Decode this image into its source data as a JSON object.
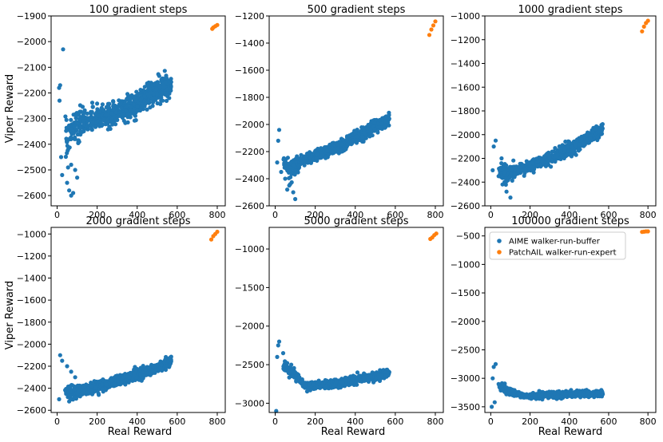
{
  "figure": {
    "xlabel": "Real Reward",
    "ylabel": "Viper Reward"
  },
  "colors": {
    "aime": "#1f77b4",
    "patchail": "#ff7f0e"
  },
  "chart_data": [
    {
      "type": "scatter",
      "title": "100 gradient steps",
      "xlim": [
        -30,
        840
      ],
      "ylim": [
        -2640,
        -1900
      ],
      "xticks": [
        0,
        200,
        400,
        600,
        800
      ],
      "yticks": [
        -2600,
        -2500,
        -2400,
        -2300,
        -2200,
        -2100,
        -2000,
        -1900
      ],
      "series": [
        {
          "name": "AIME walker-run-buffer",
          "description": "cloud",
          "trend": [
            [
              20,
              -2420
            ],
            [
              60,
              -2360
            ],
            [
              100,
              -2330
            ],
            [
              200,
              -2300
            ],
            [
              300,
              -2280
            ],
            [
              400,
              -2240
            ],
            [
              470,
              -2200
            ],
            [
              560,
              -2170
            ]
          ],
          "spread": 40,
          "outliers": [
            [
              10,
              -2180
            ],
            [
              15,
              -2170
            ],
            [
              30,
              -2030
            ],
            [
              12,
              -2230
            ],
            [
              20,
              -2450
            ],
            [
              25,
              -2520
            ],
            [
              50,
              -2550
            ],
            [
              60,
              -2580
            ],
            [
              70,
              -2600
            ],
            [
              80,
              -2590
            ],
            [
              90,
              -2500
            ],
            [
              70,
              -2480
            ],
            [
              100,
              -2530
            ],
            [
              55,
              -2420
            ]
          ]
        },
        {
          "name": "PatchAIL walker-run-expert",
          "points": [
            [
              775,
              -1950
            ],
            [
              780,
              -1945
            ],
            [
              790,
              -1940
            ],
            [
              800,
              -1935
            ]
          ]
        }
      ]
    },
    {
      "type": "scatter",
      "title": "500 gradient steps",
      "xlim": [
        -30,
        840
      ],
      "ylim": [
        -2600,
        -1200
      ],
      "xticks": [
        0,
        200,
        400,
        600,
        800
      ],
      "yticks": [
        -2600,
        -2400,
        -2200,
        -2000,
        -1800,
        -1600,
        -1400,
        -1200
      ],
      "series": [
        {
          "name": "AIME walker-run-buffer",
          "description": "cloud",
          "trend": [
            [
              20,
              -2250
            ],
            [
              80,
              -2330
            ],
            [
              140,
              -2260
            ],
            [
              200,
              -2230
            ],
            [
              300,
              -2180
            ],
            [
              400,
              -2100
            ],
            [
              500,
              -2010
            ],
            [
              570,
              -1960
            ]
          ],
          "spread": 40,
          "outliers": [
            [
              15,
              -2120
            ],
            [
              20,
              -2040
            ],
            [
              10,
              -2280
            ],
            [
              30,
              -2350
            ],
            [
              50,
              -2400
            ],
            [
              70,
              -2450
            ],
            [
              90,
              -2500
            ],
            [
              100,
              -2550
            ],
            [
              60,
              -2480
            ]
          ]
        },
        {
          "name": "PatchAIL walker-run-expert",
          "points": [
            [
              770,
              -1340
            ],
            [
              780,
              -1300
            ],
            [
              790,
              -1270
            ],
            [
              800,
              -1240
            ]
          ]
        }
      ]
    },
    {
      "type": "scatter",
      "title": "1000 gradient steps",
      "xlim": [
        -30,
        840
      ],
      "ylim": [
        -2600,
        -1000
      ],
      "xticks": [
        0,
        200,
        400,
        600,
        800
      ],
      "yticks": [
        -2600,
        -2400,
        -2200,
        -2000,
        -1800,
        -1600,
        -1400,
        -1200,
        -1000
      ],
      "series": [
        {
          "name": "AIME walker-run-buffer",
          "description": "cloud",
          "trend": [
            [
              20,
              -2250
            ],
            [
              80,
              -2330
            ],
            [
              150,
              -2290
            ],
            [
              200,
              -2270
            ],
            [
              300,
              -2200
            ],
            [
              400,
              -2120
            ],
            [
              500,
              -2030
            ],
            [
              570,
              -1960
            ]
          ],
          "spread": 45,
          "outliers": [
            [
              15,
              -2100
            ],
            [
              25,
              -2050
            ],
            [
              10,
              -2300
            ],
            [
              40,
              -2350
            ],
            [
              60,
              -2420
            ],
            [
              80,
              -2480
            ],
            [
              100,
              -2530
            ],
            [
              70,
              -2400
            ],
            [
              55,
              -2200
            ]
          ]
        },
        {
          "name": "PatchAIL walker-run-expert",
          "points": [
            [
              770,
              -1130
            ],
            [
              780,
              -1090
            ],
            [
              790,
              -1060
            ],
            [
              800,
              -1040
            ]
          ]
        }
      ]
    },
    {
      "type": "scatter",
      "title": "2000 gradient steps",
      "xlim": [
        -30,
        840
      ],
      "ylim": [
        -2620,
        -940
      ],
      "xticks": [
        0,
        200,
        400,
        600,
        800
      ],
      "yticks": [
        -2600,
        -2400,
        -2200,
        -2000,
        -1800,
        -1600,
        -1400,
        -1200,
        -1000
      ],
      "series": [
        {
          "name": "AIME walker-run-buffer",
          "description": "cloud",
          "trend": [
            [
              20,
              -2380
            ],
            [
              80,
              -2440
            ],
            [
              150,
              -2410
            ],
            [
              200,
              -2390
            ],
            [
              300,
              -2330
            ],
            [
              400,
              -2280
            ],
            [
              500,
              -2210
            ],
            [
              560,
              -2160
            ]
          ],
          "spread": 40,
          "outliers": [
            [
              15,
              -2100
            ],
            [
              25,
              -2150
            ],
            [
              10,
              -2500
            ],
            [
              50,
              -2200
            ],
            [
              70,
              -2250
            ],
            [
              90,
              -2300
            ],
            [
              100,
              -2450
            ],
            [
              60,
              -2520
            ]
          ]
        },
        {
          "name": "PatchAIL walker-run-expert",
          "points": [
            [
              770,
              -1050
            ],
            [
              780,
              -1020
            ],
            [
              790,
              -1000
            ],
            [
              800,
              -980
            ]
          ]
        }
      ]
    },
    {
      "type": "scatter",
      "title": "5000 gradient steps",
      "xlim": [
        -30,
        840
      ],
      "ylim": [
        -3120,
        -720
      ],
      "xticks": [
        0,
        200,
        400,
        600,
        800
      ],
      "yticks": [
        -3000,
        -2500,
        -2000,
        -1500,
        -1000
      ],
      "series": [
        {
          "name": "AIME walker-run-buffer",
          "description": "cloud",
          "trend": [
            [
              20,
              -2450
            ],
            [
              80,
              -2600
            ],
            [
              150,
              -2770
            ],
            [
              200,
              -2770
            ],
            [
              300,
              -2750
            ],
            [
              400,
              -2700
            ],
            [
              500,
              -2650
            ],
            [
              570,
              -2600
            ]
          ],
          "spread": 45,
          "outliers": [
            [
              15,
              -2250
            ],
            [
              20,
              -2200
            ],
            [
              10,
              -2400
            ],
            [
              40,
              -2350
            ],
            [
              60,
              -2480
            ],
            [
              80,
              -2500
            ],
            [
              100,
              -2600
            ],
            [
              5,
              -3100
            ]
          ]
        },
        {
          "name": "PatchAIL walker-run-expert",
          "points": [
            [
              775,
              -870
            ],
            [
              785,
              -850
            ],
            [
              795,
              -820
            ],
            [
              805,
              -800
            ]
          ]
        }
      ]
    },
    {
      "type": "scatter",
      "title": "100000 gradient steps",
      "xlim": [
        -30,
        840
      ],
      "ylim": [
        -3600,
        -350
      ],
      "xticks": [
        0,
        200,
        400,
        600,
        800
      ],
      "yticks": [
        -3500,
        -3000,
        -2500,
        -2000,
        -1500,
        -1000,
        -500
      ],
      "series": [
        {
          "name": "AIME walker-run-buffer",
          "description": "cloud",
          "trend": [
            [
              20,
              -3100
            ],
            [
              80,
              -3200
            ],
            [
              150,
              -3300
            ],
            [
              200,
              -3310
            ],
            [
              300,
              -3300
            ],
            [
              400,
              -3280
            ],
            [
              500,
              -3270
            ],
            [
              570,
              -3260
            ]
          ],
          "spread": 45,
          "outliers": [
            [
              15,
              -2800
            ],
            [
              25,
              -2750
            ],
            [
              10,
              -3000
            ],
            [
              5,
              -3500
            ],
            [
              40,
              -3100
            ],
            [
              60,
              -3200
            ],
            [
              20,
              -3420
            ]
          ]
        },
        {
          "name": "PatchAIL walker-run-expert",
          "points": [
            [
              770,
              -430
            ],
            [
              780,
              -425
            ],
            [
              790,
              -420
            ],
            [
              800,
              -420
            ]
          ]
        }
      ]
    }
  ],
  "legend": {
    "entries": [
      "AIME walker-run-buffer",
      "PatchAIL walker-run-expert"
    ],
    "placement": "top-left of 100000 gradient steps panel"
  }
}
